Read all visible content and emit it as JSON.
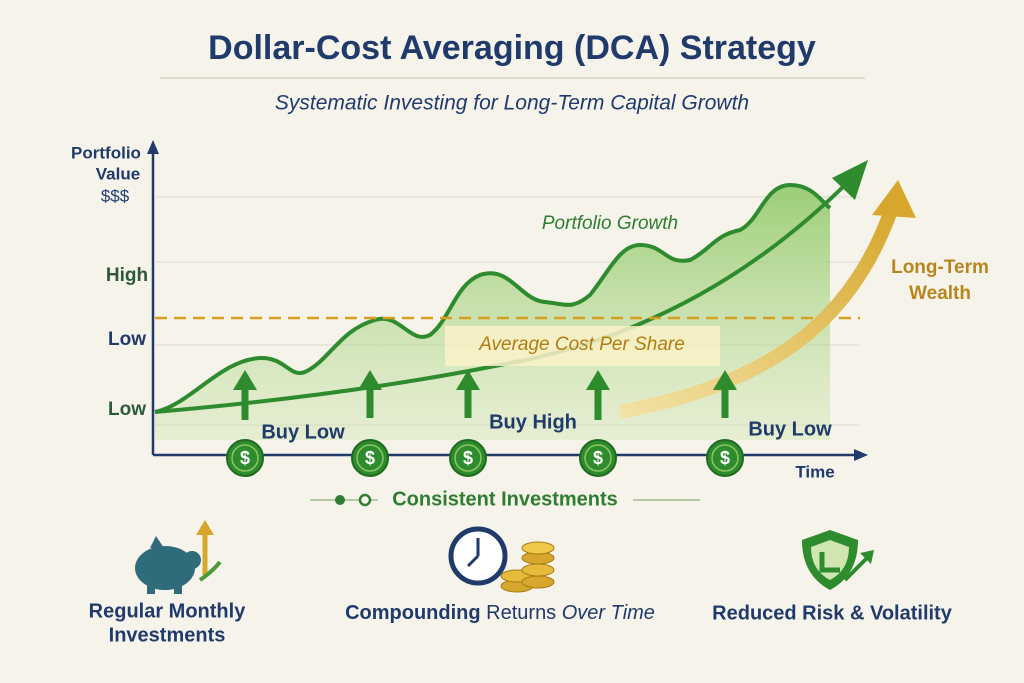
{
  "header": {
    "title": "Dollar-Cost Averaging (DCA) Strategy",
    "subtitle": "Systematic Investing for Long-Term Capital Growth"
  },
  "chart": {
    "y_axis_label": [
      "Portfolio",
      "Value",
      "$$$"
    ],
    "y_labels": [
      "High",
      "Low",
      "Low"
    ],
    "x_axis_label": "Time",
    "line_label": "Portfolio Growth",
    "cost_label": "Average Cost Per Share",
    "wealth_label": [
      "Long-Term",
      "Wealth"
    ],
    "annotations": [
      "Buy Low",
      "Buy High",
      "Buy Low"
    ],
    "coin_symbol": "$",
    "footer_label": "Consistent Investments"
  },
  "benefits": [
    {
      "label": [
        "Regular Monthly",
        "Investments"
      ]
    },
    {
      "label": [
        "Compounding",
        "Returns",
        "Over Time"
      ]
    },
    {
      "label": [
        "Reduced Risk & Volatility"
      ]
    }
  ]
}
